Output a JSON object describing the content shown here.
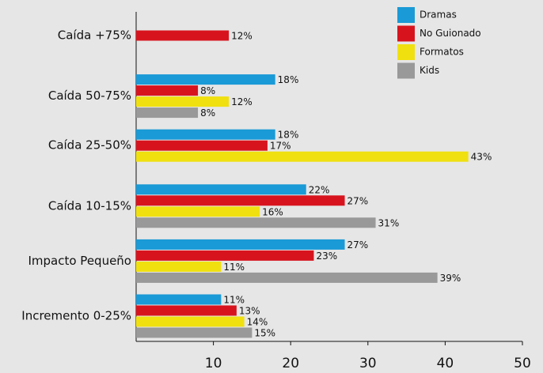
{
  "chart_data": {
    "type": "bar",
    "orientation": "horizontal",
    "categories": [
      "Caída +75%",
      "Caída 50-75%",
      "Caída 25-50%",
      "Caída 10-15%",
      "Impacto Pequeño",
      "Incremento 0-25%"
    ],
    "series": [
      {
        "name": "Dramas",
        "color": "#1a9ad6",
        "values": [
          null,
          18,
          18,
          22,
          27,
          11
        ],
        "value_labels": [
          null,
          "18%",
          "18%",
          "22%",
          "27%",
          "11%"
        ]
      },
      {
        "name": "No Guionado",
        "color": "#d7141e",
        "values": [
          12,
          8,
          17,
          27,
          23,
          13
        ],
        "value_labels": [
          "12%",
          "8%",
          "17%",
          "27%",
          "23%",
          "13%"
        ]
      },
      {
        "name": "Formatos",
        "color": "#f0e010",
        "values": [
          null,
          12,
          43,
          16,
          11,
          14
        ],
        "value_labels": [
          null,
          "12%",
          "43%",
          "16%",
          "11%",
          "14%"
        ]
      },
      {
        "name": "Kids",
        "color": "#999999",
        "values": [
          null,
          8,
          null,
          31,
          39,
          15
        ],
        "value_labels": [
          null,
          "8%",
          null,
          "31%",
          "39%",
          "15%"
        ]
      }
    ],
    "xlim": [
      0,
      50
    ],
    "xticks": [
      10,
      20,
      30,
      40,
      50
    ],
    "legend": "top-right"
  }
}
